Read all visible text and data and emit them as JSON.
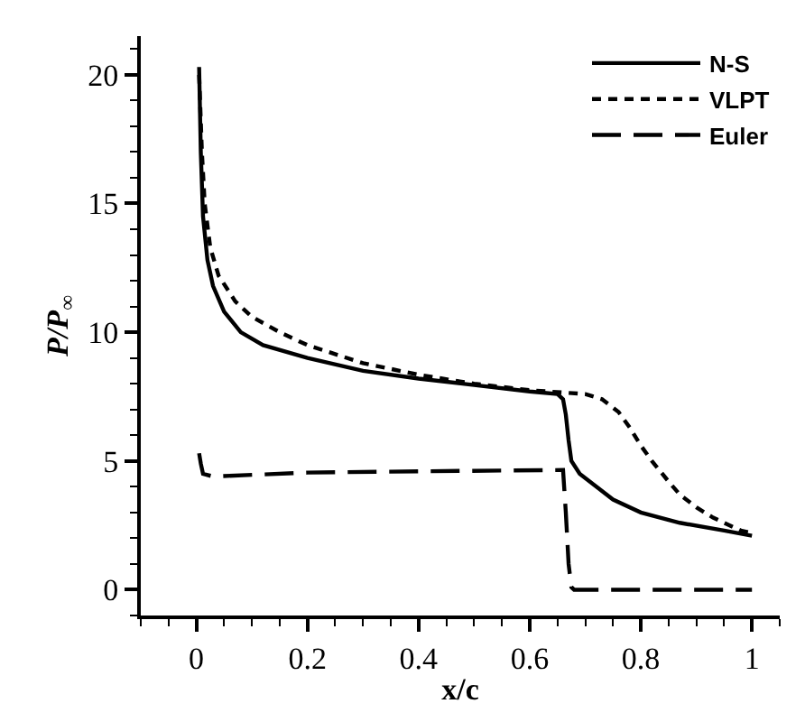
{
  "chart_data": {
    "type": "line",
    "xlabel": "x/c",
    "ylabel": "P/P$_{∞}$",
    "xlim": [
      -0.1,
      1.05
    ],
    "xticks": [
      0,
      0.2,
      0.4,
      0.6,
      0.8,
      1
    ],
    "ylim": [
      -1,
      21.5
    ],
    "yticks": [
      0,
      5,
      10,
      15,
      20
    ],
    "legend": "top right",
    "marker": "none",
    "series": [
      {
        "name": "N-S",
        "color": "#000000",
        "line_style": "solid",
        "x": [
          0.005,
          0.008,
          0.012,
          0.02,
          0.03,
          0.05,
          0.08,
          0.12,
          0.2,
          0.3,
          0.4,
          0.5,
          0.6,
          0.65,
          0.66,
          0.665,
          0.67,
          0.675,
          0.69,
          0.72,
          0.75,
          0.8,
          0.87,
          0.95,
          1.0
        ],
        "values": [
          20.3,
          17,
          14.5,
          12.8,
          11.8,
          10.8,
          10.0,
          9.5,
          9.0,
          8.5,
          8.2,
          7.95,
          7.7,
          7.6,
          7.4,
          6.8,
          5.8,
          5.0,
          4.5,
          4.0,
          3.5,
          3.0,
          2.6,
          2.3,
          2.1
        ]
      },
      {
        "name": "VLPT",
        "color": "#000000",
        "line_style": "dotted",
        "x": [
          0.005,
          0.01,
          0.015,
          0.025,
          0.04,
          0.07,
          0.1,
          0.15,
          0.2,
          0.3,
          0.4,
          0.5,
          0.6,
          0.7,
          0.73,
          0.76,
          0.78,
          0.8,
          0.82,
          0.85,
          0.87,
          0.9,
          0.93,
          0.96,
          0.98,
          1.0
        ],
        "values": [
          20,
          17,
          15,
          13.3,
          12.2,
          11.2,
          10.6,
          10.0,
          9.5,
          8.8,
          8.35,
          8.0,
          7.75,
          7.6,
          7.4,
          6.9,
          6.3,
          5.6,
          5.0,
          4.2,
          3.7,
          3.2,
          2.8,
          2.5,
          2.3,
          2.2
        ]
      },
      {
        "name": "Euler",
        "color": "#000000",
        "line_style": "dashed",
        "x": [
          0.005,
          0.008,
          0.012,
          0.03,
          0.2,
          0.4,
          0.66,
          0.665,
          0.67,
          0.675,
          0.68,
          1.0
        ],
        "values": [
          5.3,
          4.9,
          4.5,
          4.4,
          4.55,
          4.6,
          4.65,
          3.0,
          1.0,
          0.1,
          0.0,
          0.0
        ]
      }
    ]
  }
}
